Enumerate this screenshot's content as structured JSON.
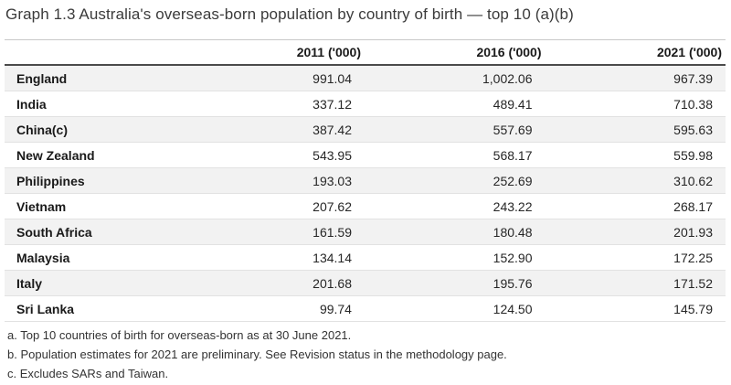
{
  "title": "Graph 1.3 Australia's overseas-born population by country of birth — top 10 (a)(b)",
  "table": {
    "columns": [
      "",
      "2011 ('000)",
      "2016 ('000)",
      "2021 ('000)"
    ],
    "rows": [
      {
        "country": "England",
        "values": [
          "991.04",
          "1,002.06",
          "967.39"
        ]
      },
      {
        "country": "India",
        "values": [
          "337.12",
          "489.41",
          "710.38"
        ]
      },
      {
        "country": "China(c)",
        "values": [
          "387.42",
          "557.69",
          "595.63"
        ]
      },
      {
        "country": "New Zealand",
        "values": [
          "543.95",
          "568.17",
          "559.98"
        ]
      },
      {
        "country": "Philippines",
        "values": [
          "193.03",
          "252.69",
          "310.62"
        ]
      },
      {
        "country": "Vietnam",
        "values": [
          "207.62",
          "243.22",
          "268.17"
        ]
      },
      {
        "country": "South Africa",
        "values": [
          "161.59",
          "180.48",
          "201.93"
        ]
      },
      {
        "country": "Malaysia",
        "values": [
          "134.14",
          "152.90",
          "172.25"
        ]
      },
      {
        "country": "Italy",
        "values": [
          "201.68",
          "195.76",
          "171.52"
        ]
      },
      {
        "country": "Sri Lanka",
        "values": [
          "99.74",
          "124.50",
          "145.79"
        ]
      }
    ]
  },
  "footnotes": [
    "a. Top 10 countries of birth for overseas-born as at 30 June 2021.",
    "b. Population estimates for 2021 are preliminary. See Revision status in the methodology page.",
    "c. Excludes SARs and Taiwan."
  ],
  "colors": {
    "row_stripe": "#f2f2f2",
    "header_underline": "#4b4b4b",
    "row_border": "#e2e2e2",
    "top_rule": "#c9c9c9",
    "text": "#262626",
    "title_text": "#3b3b3b"
  },
  "chart_data": {
    "type": "table",
    "title": "Graph 1.3 Australia's overseas-born population by country of birth — top 10 (a)(b)",
    "categories": [
      "England",
      "India",
      "China(c)",
      "New Zealand",
      "Philippines",
      "Vietnam",
      "South Africa",
      "Malaysia",
      "Italy",
      "Sri Lanka"
    ],
    "series": [
      {
        "name": "2011 ('000)",
        "values": [
          991.04,
          337.12,
          387.42,
          543.95,
          193.03,
          207.62,
          161.59,
          134.14,
          201.68,
          99.74
        ]
      },
      {
        "name": "2016 ('000)",
        "values": [
          1002.06,
          489.41,
          557.69,
          568.17,
          252.69,
          243.22,
          180.48,
          152.9,
          195.76,
          124.5
        ]
      },
      {
        "name": "2021 ('000)",
        "values": [
          967.39,
          710.38,
          595.63,
          559.98,
          310.62,
          268.17,
          201.93,
          172.25,
          171.52,
          145.79
        ]
      }
    ],
    "footnotes": [
      "a. Top 10 countries of birth for overseas-born as at 30 June 2021.",
      "b. Population estimates for 2021 are preliminary. See Revision status in the methodology page.",
      "c. Excludes SARs and Taiwan."
    ]
  }
}
